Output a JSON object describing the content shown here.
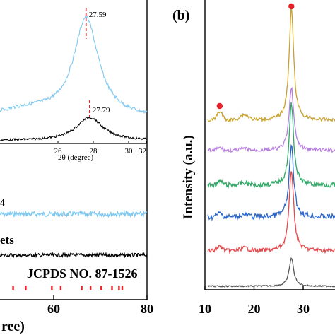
{
  "figure": {
    "left_panel_xlabel": "ree)",
    "inset_xlabel": "2θ (degree)",
    "label_fragment_a": "4",
    "label_fragment_b": "ets",
    "jcpds_label": "JCPDS NO. 87-1526",
    "panel_b_label": "(b)",
    "panel_b_ylabel": "Intensity (a.u.)"
  },
  "chart_data": [
    {
      "type": "line",
      "panel": "left (partial)",
      "xlim": [
        46,
        80
      ],
      "ticks": [
        60,
        80
      ],
      "tick_labels": [
        "60",
        "80"
      ],
      "xlabel": "ree)",
      "series": [
        {
          "label": "4",
          "color": "#7ec8f0",
          "style": "flat noisy pattern"
        },
        {
          "label": "ets",
          "color": "#000000",
          "style": "flat noisy pattern"
        }
      ],
      "reference": {
        "label": "JCPDS NO. 87-1526",
        "color": "#e8202a",
        "positions": [
          51.3,
          54.0,
          59.6,
          61.5,
          66.0,
          67.9,
          70.2,
          72.5,
          74.0,
          74.7
        ]
      }
    },
    {
      "type": "line",
      "panel": "inset",
      "xlim": [
        24,
        32
      ],
      "ticks": [
        26,
        28,
        30,
        32
      ],
      "tick_labels": [
        "26",
        "28",
        "30",
        "32"
      ],
      "xlabel": "2θ (degree)",
      "series": [
        {
          "color": "#7ec8f0",
          "peak_x": 27.59,
          "peak_label": "27.59"
        },
        {
          "color": "#000000",
          "peak_x": 27.79,
          "peak_label": "27.79"
        }
      ],
      "marker_color": "#e8202a"
    },
    {
      "type": "line",
      "panel": "b",
      "xlim": [
        10,
        34.5
      ],
      "ticks": [
        10,
        20,
        30
      ],
      "tick_labels": [
        "10",
        "20",
        "30"
      ],
      "ylabel": "Intensity (a.u.)",
      "series": [
        {
          "color": "#555555",
          "peak_x": 27.6
        },
        {
          "color": "#e8474a",
          "peak_x": 27.6
        },
        {
          "color": "#2a64c8",
          "peak_x": 27.6
        },
        {
          "color": "#2fa866",
          "peak_x": 27.6
        },
        {
          "color": "#b77de0",
          "peak_x": 27.6
        },
        {
          "color": "#c9a12a",
          "peak_x": 27.6
        }
      ],
      "markers": [
        {
          "x": 13.0,
          "color": "#e8202a"
        },
        {
          "x": 27.6,
          "color": "#e8202a"
        }
      ]
    }
  ]
}
